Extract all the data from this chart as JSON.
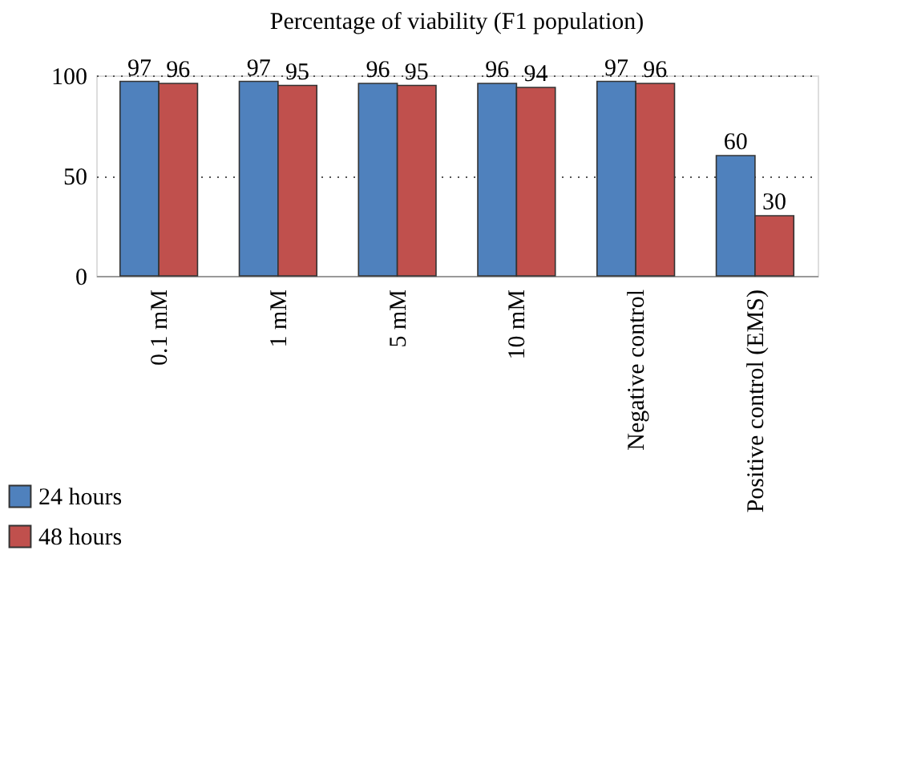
{
  "chart_data": {
    "type": "bar",
    "title": "Percentage of viability (F1 population)",
    "categories": [
      "0.1 mM",
      "1 mM",
      "5 mM",
      "10 mM",
      "Negative control",
      "Positive control (EMS)"
    ],
    "series": [
      {
        "name": "24 hours",
        "color": "#4f81bd",
        "values": [
          97,
          97,
          96,
          96,
          97,
          60
        ]
      },
      {
        "name": "48 hours",
        "color": "#c0504d",
        "values": [
          96,
          95,
          95,
          94,
          96,
          30
        ]
      }
    ],
    "ylim": [
      0,
      100
    ],
    "yticks": [
      0,
      50,
      100
    ],
    "grid": "y",
    "legend": "bottom left",
    "data_labels": true
  }
}
